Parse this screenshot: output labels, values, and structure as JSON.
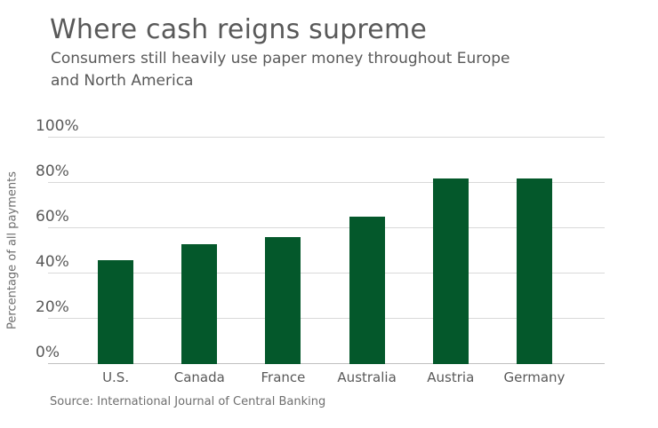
{
  "chart_data": {
    "type": "bar",
    "title": "Where cash reigns supreme",
    "subtitle": "Consumers still heavily use paper money throughout Europe\nand North America",
    "categories": [
      "U.S.",
      "Canada",
      "France",
      "Australia",
      "Austria",
      "Germany"
    ],
    "values": [
      46,
      53,
      56,
      65,
      82,
      82
    ],
    "xlabel": "",
    "ylabel": "Percentage of all payments",
    "ylim": [
      0,
      100
    ],
    "yticks": [
      0,
      20,
      40,
      60,
      80,
      100
    ],
    "ytick_labels": [
      "0%",
      "20%",
      "40%",
      "60%",
      "80%",
      "100%"
    ],
    "grid": true,
    "legend": false,
    "source": "Source: International Journal of Central Banking",
    "colors": {
      "bar": "#04582B",
      "gridline": "#D9D9D9",
      "axis_line": "#C0C0C0",
      "text": "#595959",
      "muted_text": "#6E6E6E",
      "background": "#FFFFFF"
    }
  }
}
